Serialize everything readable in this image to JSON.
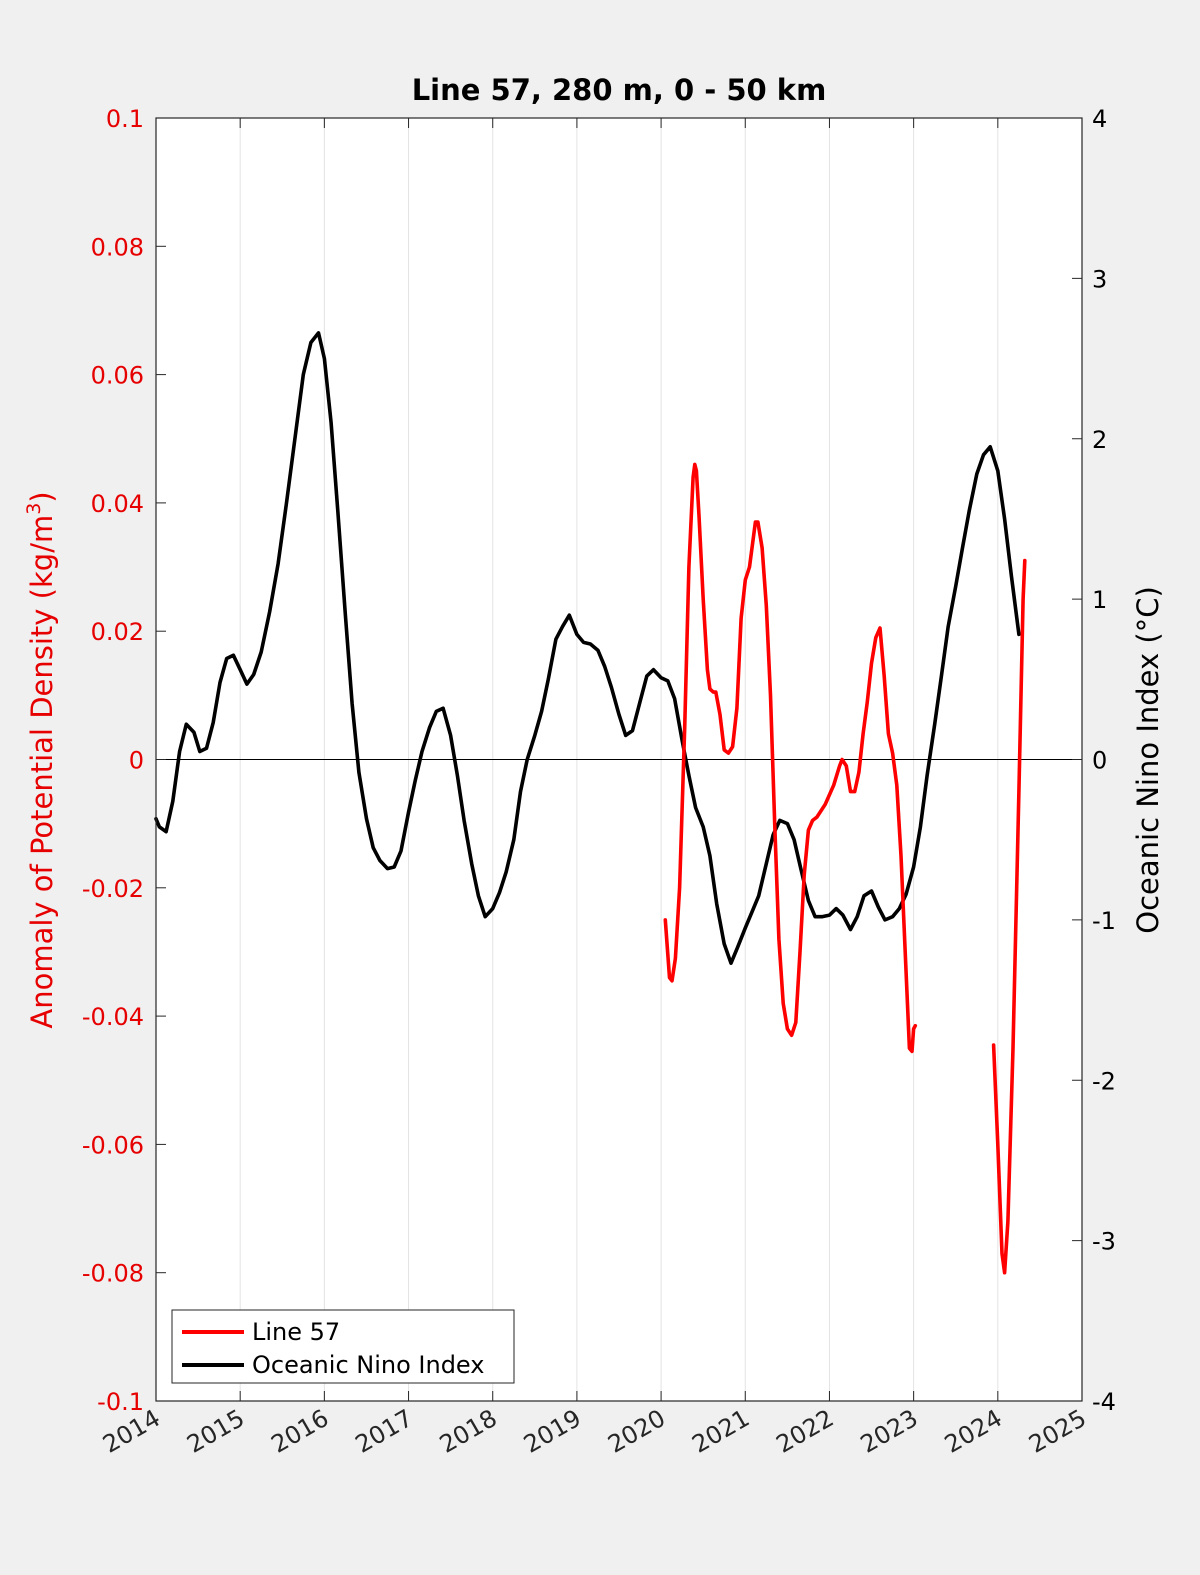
{
  "chart_data": {
    "type": "line",
    "title": "Line 57, 280 m, 0 - 50 km",
    "ylabel_left_parts": [
      "Anomaly of Potential Density (kg/m",
      "3",
      ")"
    ],
    "ylabel_right": "Oceanic Nino Index (°C)",
    "xlim": [
      2014,
      2025
    ],
    "ylim_left": [
      -0.1,
      0.1
    ],
    "ylim_right": [
      -4,
      4
    ],
    "x_ticks": [
      "2014",
      "2015",
      "2016",
      "2017",
      "2018",
      "2019",
      "2020",
      "2021",
      "2022",
      "2023",
      "2024",
      "2025"
    ],
    "y_left_ticks": [
      "0.1",
      "0.08",
      "0.06",
      "0.04",
      "0.02",
      "0",
      "-0.02",
      "-0.04",
      "-0.06",
      "-0.08",
      "-0.1"
    ],
    "y_right_ticks": [
      "4",
      "3",
      "2",
      "1",
      "0",
      "-1",
      "-2",
      "-3",
      "-4"
    ],
    "grid": "vertical",
    "zero_line": true,
    "legend_position": "bottom-left",
    "colors": {
      "line57": "#ff0000",
      "oni": "#000000",
      "left_axis": "#e60000",
      "right_axis": "#000000"
    },
    "series": [
      {
        "name": "Line 57",
        "axis": "left",
        "segments": [
          [
            [
              2020.05,
              -0.025
            ],
            [
              2020.1,
              -0.034
            ],
            [
              2020.13,
              -0.0345
            ],
            [
              2020.17,
              -0.031
            ],
            [
              2020.22,
              -0.02
            ],
            [
              2020.28,
              0.005
            ],
            [
              2020.33,
              0.03
            ],
            [
              2020.38,
              0.044
            ],
            [
              2020.4,
              0.046
            ],
            [
              2020.42,
              0.045
            ],
            [
              2020.45,
              0.038
            ],
            [
              2020.5,
              0.025
            ],
            [
              2020.55,
              0.014
            ],
            [
              2020.58,
              0.011
            ],
            [
              2020.62,
              0.0105
            ],
            [
              2020.65,
              0.0105
            ],
            [
              2020.7,
              0.007
            ],
            [
              2020.75,
              0.0015
            ],
            [
              2020.8,
              0.001
            ],
            [
              2020.85,
              0.002
            ],
            [
              2020.9,
              0.008
            ],
            [
              2020.95,
              0.022
            ],
            [
              2021.0,
              0.028
            ],
            [
              2021.05,
              0.03
            ],
            [
              2021.12,
              0.037
            ],
            [
              2021.15,
              0.037
            ],
            [
              2021.2,
              0.033
            ],
            [
              2021.25,
              0.024
            ],
            [
              2021.3,
              0.01
            ],
            [
              2021.35,
              -0.01
            ],
            [
              2021.4,
              -0.028
            ],
            [
              2021.45,
              -0.038
            ],
            [
              2021.5,
              -0.042
            ],
            [
              2021.55,
              -0.043
            ],
            [
              2021.6,
              -0.041
            ],
            [
              2021.65,
              -0.03
            ],
            [
              2021.7,
              -0.018
            ],
            [
              2021.75,
              -0.011
            ],
            [
              2021.8,
              -0.0095
            ],
            [
              2021.85,
              -0.009
            ],
            [
              2021.95,
              -0.007
            ],
            [
              2022.05,
              -0.004
            ],
            [
              2022.12,
              -0.001
            ],
            [
              2022.15,
              0.0
            ],
            [
              2022.2,
              -0.001
            ],
            [
              2022.25,
              -0.005
            ],
            [
              2022.3,
              -0.005
            ],
            [
              2022.35,
              -0.002
            ],
            [
              2022.4,
              0.004
            ],
            [
              2022.45,
              0.009
            ],
            [
              2022.5,
              0.015
            ],
            [
              2022.55,
              0.019
            ],
            [
              2022.6,
              0.0205
            ],
            [
              2022.65,
              0.013
            ],
            [
              2022.7,
              0.004
            ],
            [
              2022.75,
              0.001
            ],
            [
              2022.8,
              -0.004
            ],
            [
              2022.85,
              -0.015
            ],
            [
              2022.9,
              -0.03
            ],
            [
              2022.95,
              -0.045
            ],
            [
              2022.98,
              -0.0455
            ],
            [
              2023.0,
              -0.042
            ],
            [
              2023.02,
              -0.0415
            ]
          ],
          [
            [
              2023.95,
              -0.0445
            ],
            [
              2024.0,
              -0.06
            ],
            [
              2024.05,
              -0.077
            ],
            [
              2024.08,
              -0.08
            ],
            [
              2024.12,
              -0.072
            ],
            [
              2024.18,
              -0.045
            ],
            [
              2024.25,
              -0.005
            ],
            [
              2024.3,
              0.025
            ],
            [
              2024.32,
              0.031
            ]
          ]
        ]
      },
      {
        "name": "Oceanic Nino Index",
        "axis": "right",
        "segments": [
          [
            [
              2014.0,
              -0.37
            ],
            [
              2014.04,
              -0.42
            ],
            [
              2014.12,
              -0.45
            ],
            [
              2014.2,
              -0.26
            ],
            [
              2014.28,
              0.05
            ],
            [
              2014.36,
              0.22
            ],
            [
              2014.45,
              0.17
            ],
            [
              2014.52,
              0.05
            ],
            [
              2014.6,
              0.07
            ],
            [
              2014.68,
              0.23
            ],
            [
              2014.76,
              0.48
            ],
            [
              2014.84,
              0.63
            ],
            [
              2014.92,
              0.65
            ],
            [
              2015.0,
              0.56
            ],
            [
              2015.08,
              0.47
            ],
            [
              2015.16,
              0.53
            ],
            [
              2015.25,
              0.67
            ],
            [
              2015.35,
              0.92
            ],
            [
              2015.45,
              1.22
            ],
            [
              2015.55,
              1.6
            ],
            [
              2015.65,
              2.0
            ],
            [
              2015.75,
              2.4
            ],
            [
              2015.84,
              2.6
            ],
            [
              2015.93,
              2.66
            ],
            [
              2016.0,
              2.5
            ],
            [
              2016.08,
              2.1
            ],
            [
              2016.16,
              1.55
            ],
            [
              2016.25,
              0.9
            ],
            [
              2016.33,
              0.35
            ],
            [
              2016.41,
              -0.08
            ],
            [
              2016.5,
              -0.37
            ],
            [
              2016.58,
              -0.55
            ],
            [
              2016.66,
              -0.63
            ],
            [
              2016.75,
              -0.68
            ],
            [
              2016.83,
              -0.67
            ],
            [
              2016.91,
              -0.57
            ],
            [
              2017.0,
              -0.33
            ],
            [
              2017.08,
              -0.13
            ],
            [
              2017.16,
              0.05
            ],
            [
              2017.25,
              0.2
            ],
            [
              2017.33,
              0.3
            ],
            [
              2017.41,
              0.32
            ],
            [
              2017.5,
              0.15
            ],
            [
              2017.58,
              -0.1
            ],
            [
              2017.66,
              -0.38
            ],
            [
              2017.75,
              -0.65
            ],
            [
              2017.83,
              -0.85
            ],
            [
              2017.91,
              -0.98
            ],
            [
              2018.0,
              -0.93
            ],
            [
              2018.08,
              -0.83
            ],
            [
              2018.16,
              -0.7
            ],
            [
              2018.25,
              -0.5
            ],
            [
              2018.33,
              -0.2
            ],
            [
              2018.41,
              0.0
            ],
            [
              2018.5,
              0.15
            ],
            [
              2018.58,
              0.3
            ],
            [
              2018.66,
              0.5
            ],
            [
              2018.75,
              0.75
            ],
            [
              2018.83,
              0.83
            ],
            [
              2018.91,
              0.9
            ],
            [
              2019.0,
              0.78
            ],
            [
              2019.08,
              0.73
            ],
            [
              2019.16,
              0.72
            ],
            [
              2019.25,
              0.68
            ],
            [
              2019.33,
              0.58
            ],
            [
              2019.41,
              0.45
            ],
            [
              2019.5,
              0.28
            ],
            [
              2019.58,
              0.15
            ],
            [
              2019.66,
              0.18
            ],
            [
              2019.75,
              0.36
            ],
            [
              2019.83,
              0.52
            ],
            [
              2019.91,
              0.56
            ],
            [
              2020.0,
              0.51
            ],
            [
              2020.08,
              0.49
            ],
            [
              2020.16,
              0.38
            ],
            [
              2020.25,
              0.12
            ],
            [
              2020.33,
              -0.1
            ],
            [
              2020.41,
              -0.3
            ],
            [
              2020.5,
              -0.42
            ],
            [
              2020.58,
              -0.6
            ],
            [
              2020.66,
              -0.9
            ],
            [
              2020.75,
              -1.15
            ],
            [
              2020.83,
              -1.27
            ],
            [
              2020.91,
              -1.17
            ],
            [
              2021.0,
              -1.05
            ],
            [
              2021.08,
              -0.95
            ],
            [
              2021.16,
              -0.85
            ],
            [
              2021.25,
              -0.65
            ],
            [
              2021.33,
              -0.47
            ],
            [
              2021.41,
              -0.38
            ],
            [
              2021.5,
              -0.4
            ],
            [
              2021.58,
              -0.5
            ],
            [
              2021.66,
              -0.68
            ],
            [
              2021.75,
              -0.88
            ],
            [
              2021.83,
              -0.98
            ],
            [
              2021.91,
              -0.98
            ],
            [
              2022.0,
              -0.97
            ],
            [
              2022.08,
              -0.93
            ],
            [
              2022.16,
              -0.97
            ],
            [
              2022.25,
              -1.06
            ],
            [
              2022.33,
              -0.98
            ],
            [
              2022.41,
              -0.85
            ],
            [
              2022.5,
              -0.82
            ],
            [
              2022.58,
              -0.92
            ],
            [
              2022.66,
              -1.0
            ],
            [
              2022.75,
              -0.98
            ],
            [
              2022.83,
              -0.93
            ],
            [
              2022.91,
              -0.84
            ],
            [
              2023.0,
              -0.67
            ],
            [
              2023.08,
              -0.42
            ],
            [
              2023.16,
              -0.1
            ],
            [
              2023.25,
              0.22
            ],
            [
              2023.33,
              0.52
            ],
            [
              2023.41,
              0.83
            ],
            [
              2023.5,
              1.08
            ],
            [
              2023.58,
              1.32
            ],
            [
              2023.66,
              1.55
            ],
            [
              2023.75,
              1.78
            ],
            [
              2023.83,
              1.9
            ],
            [
              2023.91,
              1.95
            ],
            [
              2024.0,
              1.8
            ],
            [
              2024.08,
              1.5
            ],
            [
              2024.16,
              1.15
            ],
            [
              2024.25,
              0.78
            ]
          ]
        ]
      }
    ]
  }
}
